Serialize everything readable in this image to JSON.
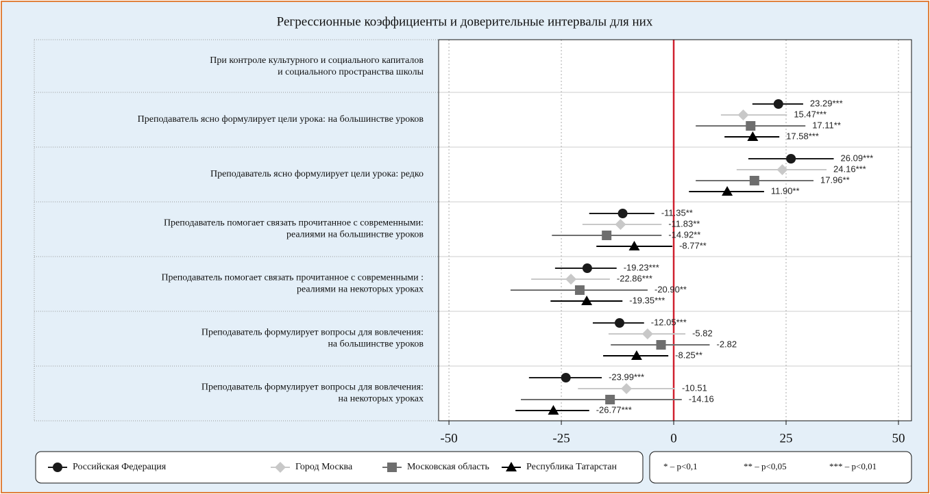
{
  "chart_data": {
    "type": "coefplot",
    "title": "Регрессионные коэффициенты и доверительные интервалы для них",
    "row_header": [
      "При контроле культурного и социального капиталов",
      "и социального пространства школы"
    ],
    "row_header_color": "#c8102e",
    "categories": [
      [
        "Преподаватель ясно формулирует цели урока: на большинстве уроков"
      ],
      [
        "Преподаватель ясно формулирует цели урока: редко"
      ],
      [
        "Преподаватель помогает связать прочитанное с современными:",
        "реалиями на большинстве уроков"
      ],
      [
        "Преподаватель помогает связать прочитанное с современными :",
        "реалиями на некоторых уроках"
      ],
      [
        "Преподаватель формулирует вопросы для вовлечения:",
        "на большинстве уроков"
      ],
      [
        "Преподаватель формулирует вопросы для вовлечения:",
        "на некоторых уроках"
      ]
    ],
    "series": [
      {
        "name": "Российская Федерация",
        "color": "#1a1a1a",
        "marker": "circle",
        "values": [
          23.29,
          26.09,
          -11.35,
          -19.23,
          -12.05,
          -23.99
        ],
        "lower": [
          17.5,
          16.6,
          -18.8,
          -26.4,
          -18.0,
          -32.2
        ],
        "upper": [
          28.8,
          35.6,
          -4.3,
          -12.7,
          -6.6,
          -16.0
        ],
        "value_labels": [
          "23.29***",
          "26.09***",
          "-11.35**",
          "-19.23***",
          "-12.05***",
          "-23.99***"
        ]
      },
      {
        "name": "Город Москва",
        "color": "#c8c8c8",
        "marker": "diamond",
        "values": [
          15.47,
          24.16,
          -11.83,
          -22.86,
          -5.82,
          -10.51
        ],
        "lower": [
          10.5,
          14.0,
          -20.3,
          -31.7,
          -14.5,
          -21.3
        ],
        "upper": [
          25.2,
          34.0,
          -2.7,
          -14.2,
          2.6,
          0.3
        ],
        "value_labels": [
          "15.47***",
          "24.16***",
          "-11.83**",
          "-22.86***",
          "-5.82",
          "-10.51"
        ]
      },
      {
        "name": "Московская область",
        "color": "#6e6e6e",
        "marker": "square",
        "values": [
          17.11,
          17.96,
          -14.92,
          -20.9,
          -2.82,
          -14.16
        ],
        "lower": [
          4.9,
          4.9,
          -27.1,
          -36.3,
          -14.0,
          -34.0
        ],
        "upper": [
          29.3,
          31.1,
          -2.7,
          -5.8,
          8.0,
          1.8
        ],
        "value_labels": [
          "17.11**",
          "17.96**",
          "-14.92**",
          "-20.90**",
          "-2.82",
          "-14.16"
        ]
      },
      {
        "name": "Республика Татарстан",
        "color": "#000000",
        "marker": "triangle",
        "values": [
          17.58,
          11.9,
          -8.77,
          -19.35,
          -8.25,
          -26.77
        ],
        "lower": [
          11.3,
          3.4,
          -17.2,
          -27.4,
          -15.7,
          -35.2
        ],
        "upper": [
          23.5,
          20.1,
          -0.3,
          -11.4,
          -1.2,
          -18.8
        ],
        "value_labels": [
          "17.58***",
          "11.90**",
          "-8.77**",
          "-19.35***",
          "-8.25**",
          "-26.77***"
        ]
      }
    ],
    "xlim": [
      -52.3,
      52.9
    ],
    "xticks": [
      -50,
      -25,
      0,
      25,
      50
    ],
    "grid": true,
    "refline": 0,
    "refline_color": "#d0202f",
    "significance_legend": [
      "* – p<0,1",
      "** – p<0,05",
      "*** – p<0,01"
    ]
  }
}
